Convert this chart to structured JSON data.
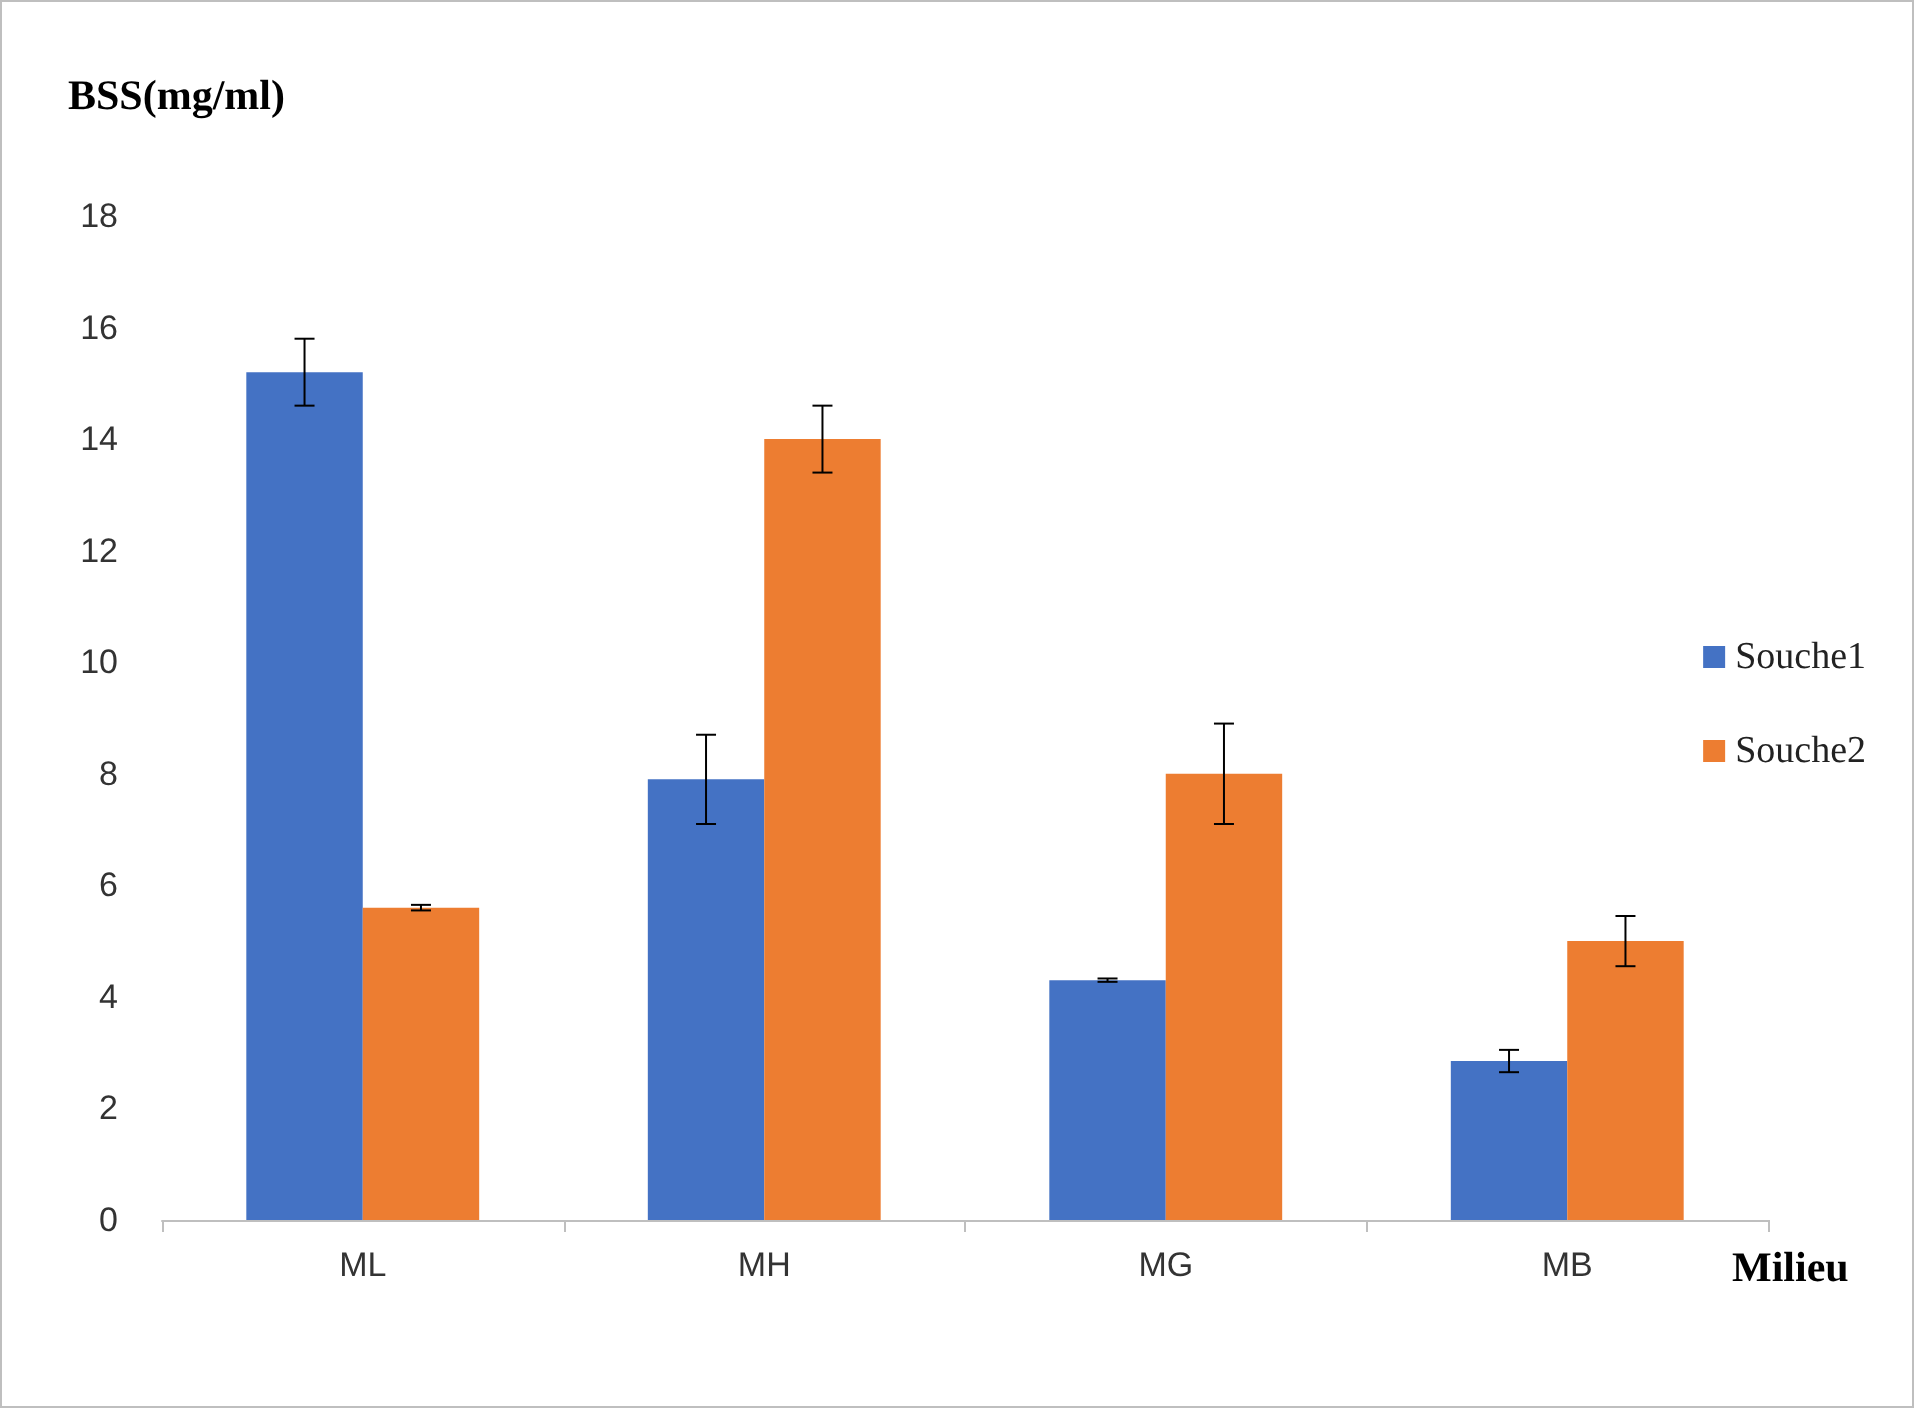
{
  "chart_data": {
    "type": "bar",
    "ylabel": "BSS(mg/ml)",
    "xlabel": "Milieu",
    "categories": [
      "ML",
      "MH",
      "MG",
      "MB"
    ],
    "series": [
      {
        "name": "Souche1",
        "color": "#4472c4",
        "values": [
          15.2,
          7.9,
          4.3,
          2.85
        ],
        "errors": [
          0.6,
          0.8,
          0.03,
          0.2
        ]
      },
      {
        "name": "Souche2",
        "color": "#ed7d31",
        "values": [
          5.6,
          14.0,
          8.0,
          5.0
        ],
        "errors": [
          0.05,
          0.6,
          0.9,
          0.45
        ]
      }
    ],
    "ylim": [
      0,
      18
    ],
    "yticks": [
      0,
      2,
      4,
      6,
      8,
      10,
      12,
      14,
      16,
      18
    ],
    "grid": false,
    "legend": "right"
  }
}
